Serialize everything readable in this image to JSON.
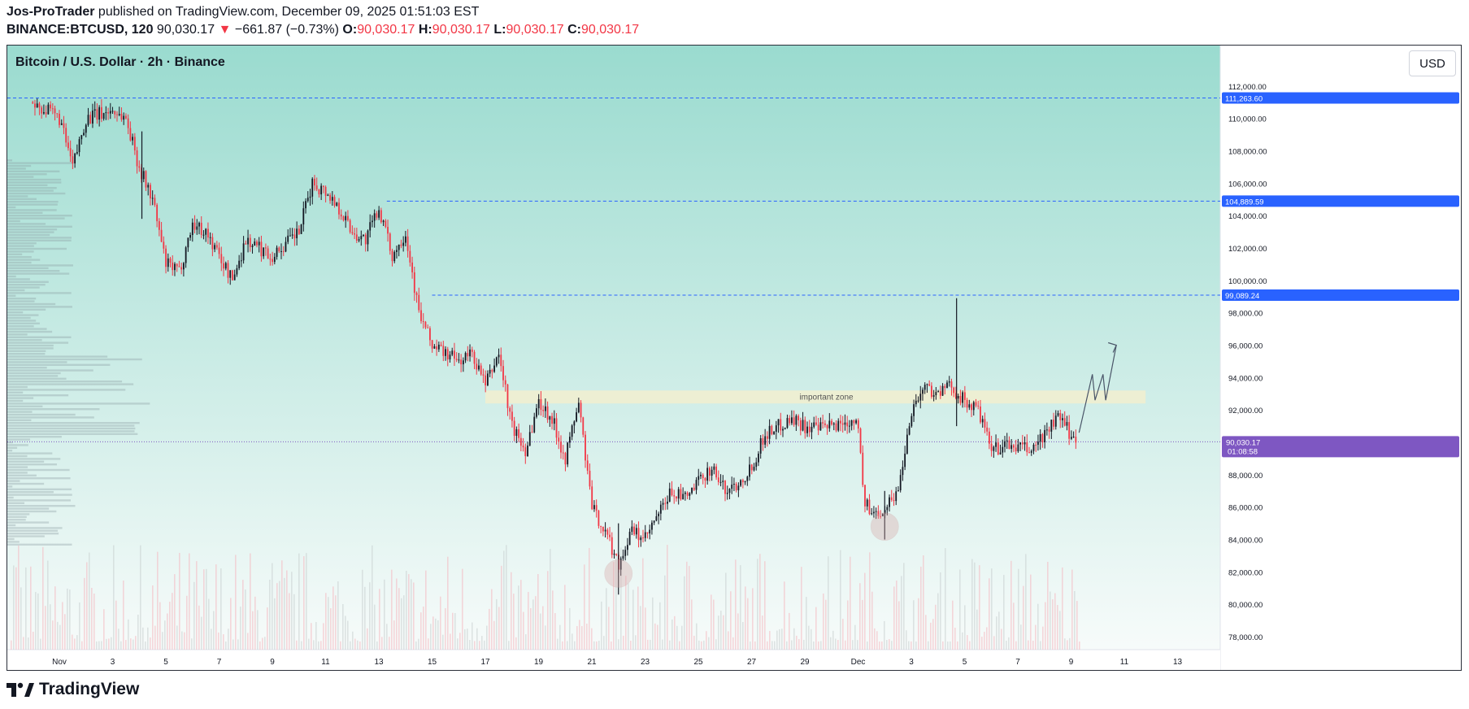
{
  "header": {
    "author": "Jos-ProTrader",
    "published": " published on TradingView.com, December 09, 2025 01:51:03 EST",
    "symbol": "BINANCE:BTCUSD, 120",
    "last": "90,030.17",
    "arrow": "▼",
    "change": "−661.87 (−0.73%)",
    "o_label": "O:",
    "o_value": "90,030.17",
    "h_label": "H:",
    "h_value": "90,030.17",
    "l_label": "L:",
    "l_value": "90,030.17",
    "c_label": "C:",
    "c_value": "90,030.17"
  },
  "chart_title": "Bitcoin / U.S. Dollar · 2h · Binance",
  "currency_button": "USD",
  "brand": "TradingView",
  "colors": {
    "up": "#131722",
    "down": "#f23645",
    "bg_top": "#9adbcf",
    "bg_bottom": "#f7fbfa",
    "level_line": "#2962ff",
    "price_line": "#7e57c2",
    "zone": "#f2efcf"
  },
  "chart_data": {
    "type": "candlestick",
    "x_tick_labels": [
      "Nov",
      "3",
      "5",
      "7",
      "9",
      "11",
      "13",
      "15",
      "17",
      "19",
      "21",
      "23",
      "25",
      "27",
      "29",
      "Dec",
      "3",
      "5",
      "7",
      "9",
      "11",
      "13"
    ],
    "y_tick_labels": [
      "112,000.00",
      "110,000.00",
      "108,000.00",
      "106,000.00",
      "104,000.00",
      "102,000.00",
      "100,000.00",
      "98,000.00",
      "96,000.00",
      "94,000.00",
      "92,000.00",
      "88,000.00",
      "86,000.00",
      "84,000.00",
      "82,000.00",
      "80,000.00",
      "78,000.00"
    ],
    "ylim": [
      77200,
      114500
    ],
    "price_path": [
      [
        "Oct 31",
        111000
      ],
      [
        "Nov 1",
        110000
      ],
      [
        "Nov 1.5",
        107000
      ],
      [
        "Nov 2",
        110000
      ],
      [
        "Nov 3",
        110500
      ],
      [
        "Nov 3.5",
        110000
      ],
      [
        "Nov 4",
        107000
      ],
      [
        "Nov 4.5",
        105000
      ],
      [
        "Nov 5",
        101000
      ],
      [
        "Nov 5.5",
        100500
      ],
      [
        "Nov 6",
        103500
      ],
      [
        "Nov 6.5",
        103000
      ],
      [
        "Nov 7",
        101500
      ],
      [
        "Nov 7.5",
        100000
      ],
      [
        "Nov 8",
        102500
      ],
      [
        "Nov 8.5",
        102000
      ],
      [
        "Nov 9",
        101500
      ],
      [
        "Nov 10",
        103000
      ],
      [
        "Nov 10.5",
        106000
      ],
      [
        "Nov 11",
        105500
      ],
      [
        "Nov 11.5",
        104500
      ],
      [
        "Nov 12",
        103000
      ],
      [
        "Nov 12.5",
        102500
      ],
      [
        "Nov 13",
        104500
      ],
      [
        "Nov 13.5",
        101500
      ],
      [
        "Nov 14",
        103000
      ],
      [
        "Nov 14.5",
        98000
      ],
      [
        "Nov 15",
        96000
      ],
      [
        "Nov 15.5",
        95500
      ],
      [
        "Nov 16",
        95000
      ],
      [
        "Nov 16.5",
        95500
      ],
      [
        "Nov 17",
        93500
      ],
      [
        "Nov 17.5",
        95500
      ],
      [
        "Nov 18",
        91000
      ],
      [
        "Nov 18.5",
        89500
      ],
      [
        "Nov 19",
        92500
      ],
      [
        "Nov 19.5",
        91500
      ],
      [
        "Nov 20",
        89000
      ],
      [
        "Nov 20.5",
        92500
      ],
      [
        "Nov 21",
        86000
      ],
      [
        "Nov 21.5",
        84500
      ],
      [
        "Nov 22",
        82500
      ],
      [
        "Nov 22.5",
        84500
      ],
      [
        "Nov 23",
        84000
      ],
      [
        "Nov 23.5",
        85500
      ],
      [
        "Nov 24",
        87000
      ],
      [
        "Nov 24.5",
        86500
      ],
      [
        "Nov 25",
        87500
      ],
      [
        "Nov 25.5",
        88500
      ],
      [
        "Nov 26",
        87000
      ],
      [
        "Nov 26.5",
        87500
      ],
      [
        "Nov 27",
        88500
      ],
      [
        "Nov 27.5",
        90500
      ],
      [
        "Nov 28",
        91000
      ],
      [
        "Nov 28.5",
        91500
      ],
      [
        "Nov 29",
        91000
      ],
      [
        "Nov 29.5",
        90800
      ],
      [
        "Nov 30",
        91000
      ],
      [
        "Dec 1",
        91500
      ],
      [
        "Dec 1.2",
        86500
      ],
      [
        "Dec 1.5",
        85500
      ],
      [
        "Dec 2",
        86000
      ],
      [
        "Dec 2.5",
        87000
      ],
      [
        "Dec 3",
        92000
      ],
      [
        "Dec 3.5",
        93500
      ],
      [
        "Dec 4",
        93000
      ],
      [
        "Dec 4.5",
        93500
      ],
      [
        "Dec 5",
        92500
      ],
      [
        "Dec 5.5",
        92000
      ],
      [
        "Dec 6",
        89500
      ],
      [
        "Dec 6.5",
        89800
      ],
      [
        "Dec 7",
        89700
      ],
      [
        "Dec 7.5",
        89500
      ],
      [
        "Dec 8",
        90500
      ],
      [
        "Dec 8.5",
        91500
      ],
      [
        "Dec 9",
        90500
      ],
      [
        "Dec 9.2",
        90030.17
      ]
    ],
    "wick_extremes": [
      [
        "Nov 4.1",
        103800,
        109200
      ],
      [
        "Nov 22",
        80600,
        85000
      ],
      [
        "Dec 4.7",
        91000,
        98900
      ],
      [
        "Dec 2.0",
        84000,
        87000
      ]
    ],
    "horizontal_levels": [
      {
        "price": 111263.6,
        "label": "111,263.60"
      },
      {
        "price": 104889.59,
        "label": "104,889.59"
      },
      {
        "price": 99089.24,
        "label": "99,089.24"
      }
    ],
    "last_price": {
      "price": 90030.17,
      "label": "90,030.17",
      "countdown": "01:08:58"
    },
    "zone": {
      "top": 93200,
      "bottom": 92400,
      "label": "important zone"
    },
    "projection": [
      [
        "Dec 9.3",
        90600
      ],
      [
        "Dec 9.8",
        94200
      ],
      [
        "Dec 9.9",
        92600
      ],
      [
        "Dec 10.2",
        94200
      ],
      [
        "Dec 10.3",
        92600
      ],
      [
        "Dec 10.7",
        96000
      ]
    ],
    "circles": [
      [
        "Nov 22",
        81900
      ],
      [
        "Dec 2",
        84800
      ]
    ],
    "grid": false
  }
}
